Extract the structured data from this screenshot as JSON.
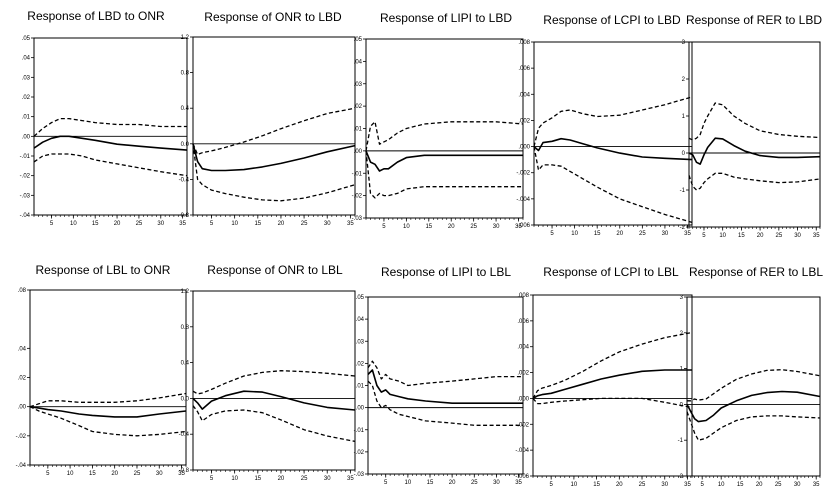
{
  "chart_data": [
    {
      "type": "line",
      "title": "Response of LBD to ONR",
      "ylim": [
        -0.04,
        0.05
      ],
      "y_ticks": [
        ".05",
        ".04",
        ".03",
        ".02",
        ".01",
        ".00",
        "-.01",
        "-.02",
        "-.03",
        "-.04"
      ],
      "x_ticks": [
        "5",
        "10",
        "15",
        "20",
        "25",
        "30",
        "35"
      ],
      "xlim": [
        1,
        36
      ],
      "x": [
        1,
        3,
        5,
        7,
        9,
        12,
        15,
        20,
        25,
        30,
        36
      ],
      "series": [
        {
          "values": [
            -0.006,
            -0.003,
            -0.001,
            0.0,
            0.0,
            -0.001,
            -0.002,
            -0.004,
            -0.005,
            -0.006,
            -0.007
          ],
          "style": "solid"
        },
        {
          "values": [
            0.0,
            0.004,
            0.007,
            0.009,
            0.009,
            0.008,
            0.007,
            0.006,
            0.006,
            0.005,
            0.005
          ],
          "style": "dashed"
        },
        {
          "values": [
            -0.013,
            -0.01,
            -0.009,
            -0.009,
            -0.009,
            -0.01,
            -0.012,
            -0.014,
            -0.016,
            -0.018,
            -0.02
          ],
          "style": "dashed"
        }
      ]
    },
    {
      "type": "line",
      "title": "Response of ONR to LBD",
      "ylim": [
        -0.8,
        1.2
      ],
      "y_ticks": [
        "1.2",
        "0.8",
        "0.4",
        "0.0",
        "-0.4",
        "-0.8"
      ],
      "x_ticks": [
        "5",
        "10",
        "15",
        "20",
        "25",
        "30",
        "35"
      ],
      "xlim": [
        1,
        36
      ],
      "x": [
        1,
        2,
        3,
        5,
        8,
        12,
        16,
        20,
        25,
        30,
        36
      ],
      "series": [
        {
          "values": [
            0.0,
            -0.2,
            -0.28,
            -0.3,
            -0.3,
            -0.29,
            -0.26,
            -0.22,
            -0.16,
            -0.09,
            -0.02
          ],
          "style": "solid"
        },
        {
          "values": [
            0.0,
            -0.12,
            -0.1,
            -0.08,
            -0.04,
            0.02,
            0.09,
            0.17,
            0.26,
            0.34,
            0.4
          ],
          "style": "dashed"
        },
        {
          "values": [
            0.0,
            -0.4,
            -0.46,
            -0.52,
            -0.56,
            -0.6,
            -0.63,
            -0.64,
            -0.61,
            -0.55,
            -0.46
          ],
          "style": "dashed"
        }
      ]
    },
    {
      "type": "line",
      "title": "Response of LIPI to LBD",
      "ylim": [
        -0.03,
        0.05
      ],
      "y_ticks": [
        ".05",
        ".04",
        ".03",
        ".02",
        ".01",
        ".00",
        "-.01",
        "-.02",
        "-.03"
      ],
      "x_ticks": [
        "5",
        "10",
        "15",
        "20",
        "25",
        "30",
        "35"
      ],
      "xlim": [
        1,
        36
      ],
      "x": [
        1,
        2,
        3,
        4,
        5,
        6,
        8,
        10,
        14,
        20,
        25,
        30,
        36
      ],
      "series": [
        {
          "values": [
            0.0,
            -0.005,
            -0.006,
            -0.009,
            -0.008,
            -0.008,
            -0.005,
            -0.003,
            -0.002,
            -0.002,
            -0.002,
            -0.002,
            -0.002
          ],
          "style": "solid"
        },
        {
          "values": [
            0.0,
            0.011,
            0.013,
            0.003,
            0.004,
            0.005,
            0.008,
            0.01,
            0.012,
            0.013,
            0.013,
            0.013,
            0.012
          ],
          "style": "dashed"
        },
        {
          "values": [
            0.0,
            -0.019,
            -0.021,
            -0.019,
            -0.02,
            -0.02,
            -0.019,
            -0.017,
            -0.016,
            -0.016,
            -0.016,
            -0.016,
            -0.016
          ],
          "style": "dashed"
        }
      ]
    },
    {
      "type": "line",
      "title": "Response of LCPI to LBD",
      "ylim": [
        -0.006,
        0.008
      ],
      "y_ticks": [
        ".008",
        ".006",
        ".004",
        ".002",
        ".000",
        "-.002",
        "-.004",
        "-.006"
      ],
      "x_ticks": [
        "5",
        "10",
        "15",
        "20",
        "25",
        "30",
        "35"
      ],
      "xlim": [
        1,
        36
      ],
      "x": [
        1,
        2,
        3,
        5,
        7,
        9,
        12,
        15,
        20,
        25,
        30,
        36
      ],
      "series": [
        {
          "values": [
            0.0,
            -0.0003,
            0.0003,
            0.0004,
            0.0006,
            0.0005,
            0.0002,
            -0.0001,
            -0.0005,
            -0.0008,
            -0.0009,
            -0.001
          ],
          "style": "solid"
        },
        {
          "values": [
            0.0,
            0.0014,
            0.0018,
            0.0022,
            0.0027,
            0.0028,
            0.0025,
            0.0023,
            0.0024,
            0.0028,
            0.0032,
            0.0038
          ],
          "style": "dashed"
        },
        {
          "values": [
            0.0,
            -0.0018,
            -0.0014,
            -0.0014,
            -0.0015,
            -0.0019,
            -0.0025,
            -0.0031,
            -0.004,
            -0.0046,
            -0.0052,
            -0.0058
          ],
          "style": "dashed"
        }
      ]
    },
    {
      "type": "line",
      "title": "Response of RER to LBD",
      "ylim": [
        -2,
        3
      ],
      "y_ticks": [
        "3",
        "2",
        "1",
        "0",
        "-1",
        "-2"
      ],
      "x_ticks": [
        "5",
        "10",
        "15",
        "20",
        "25",
        "30",
        "35"
      ],
      "xlim": [
        1,
        36
      ],
      "x": [
        1,
        2,
        3,
        4,
        5,
        6,
        8,
        10,
        13,
        16,
        20,
        25,
        30,
        36
      ],
      "series": [
        {
          "values": [
            0.0,
            -0.05,
            -0.25,
            -0.3,
            -0.05,
            0.15,
            0.4,
            0.38,
            0.2,
            0.05,
            -0.07,
            -0.12,
            -0.12,
            -0.1
          ],
          "style": "solid"
        },
        {
          "values": [
            0.4,
            0.35,
            0.4,
            0.5,
            0.8,
            1.0,
            1.35,
            1.3,
            1.0,
            0.8,
            0.6,
            0.5,
            0.45,
            0.42
          ],
          "style": "dashed"
        },
        {
          "values": [
            -0.6,
            -0.9,
            -1.0,
            -0.95,
            -0.8,
            -0.7,
            -0.55,
            -0.55,
            -0.65,
            -0.7,
            -0.75,
            -0.8,
            -0.78,
            -0.7
          ],
          "style": "dashed"
        }
      ]
    },
    {
      "type": "line",
      "title": "Response of LBL to ONR",
      "ylim": [
        -0.04,
        0.08
      ],
      "y_ticks": [
        ".08",
        ".04",
        ".02",
        ".00",
        "-.02",
        "-.04"
      ],
      "x_ticks": [
        "5",
        "10",
        "15",
        "20",
        "25",
        "30",
        "35"
      ],
      "xlim": [
        1,
        36
      ],
      "x": [
        1,
        3,
        5,
        8,
        12,
        15,
        20,
        25,
        30,
        36
      ],
      "series": [
        {
          "values": [
            0.0,
            -0.001,
            -0.002,
            -0.003,
            -0.005,
            -0.006,
            -0.007,
            -0.007,
            -0.005,
            -0.003
          ],
          "style": "solid"
        },
        {
          "values": [
            0.0,
            0.002,
            0.004,
            0.004,
            0.003,
            0.003,
            0.003,
            0.004,
            0.006,
            0.009
          ],
          "style": "dashed"
        },
        {
          "values": [
            0.0,
            -0.003,
            -0.005,
            -0.008,
            -0.013,
            -0.017,
            -0.019,
            -0.02,
            -0.019,
            -0.017
          ],
          "style": "dashed"
        }
      ]
    },
    {
      "type": "line",
      "title": "Response of ONR to LBL",
      "ylim": [
        -0.8,
        1.2
      ],
      "y_ticks": [
        "1.2",
        "0.8",
        "0.4",
        "0.0",
        "-0.4",
        "-0.8"
      ],
      "x_ticks": [
        "5",
        "10",
        "15",
        "20",
        "25",
        "30",
        "35"
      ],
      "xlim": [
        1,
        36
      ],
      "x": [
        1,
        2,
        3,
        5,
        8,
        12,
        16,
        20,
        25,
        30,
        36
      ],
      "series": [
        {
          "values": [
            0.0,
            -0.05,
            -0.12,
            -0.03,
            0.03,
            0.08,
            0.07,
            0.02,
            -0.05,
            -0.1,
            -0.13
          ],
          "style": "solid"
        },
        {
          "values": [
            0.08,
            0.05,
            0.06,
            0.1,
            0.17,
            0.25,
            0.29,
            0.31,
            0.3,
            0.28,
            0.25
          ],
          "style": "dashed"
        },
        {
          "values": [
            -0.08,
            -0.15,
            -0.25,
            -0.18,
            -0.14,
            -0.13,
            -0.16,
            -0.24,
            -0.35,
            -0.42,
            -0.48
          ],
          "style": "dashed"
        }
      ]
    },
    {
      "type": "line",
      "title": "Response of LIPI to LBL",
      "ylim": [
        -0.03,
        0.05
      ],
      "y_ticks": [
        ".05",
        ".04",
        ".03",
        ".02",
        ".01",
        ".00",
        "-.01",
        "-.02",
        "-.03"
      ],
      "x_ticks": [
        "5",
        "10",
        "15",
        "20",
        "25",
        "30",
        "35"
      ],
      "xlim": [
        1,
        36
      ],
      "x": [
        1,
        2,
        3,
        4,
        5,
        6,
        8,
        10,
        14,
        20,
        25,
        30,
        36
      ],
      "series": [
        {
          "values": [
            0.015,
            0.017,
            0.01,
            0.007,
            0.008,
            0.006,
            0.005,
            0.004,
            0.003,
            0.002,
            0.002,
            0.002,
            0.002
          ],
          "style": "solid"
        },
        {
          "values": [
            0.018,
            0.021,
            0.018,
            0.013,
            0.015,
            0.013,
            0.012,
            0.01,
            0.011,
            0.012,
            0.013,
            0.014,
            0.014
          ],
          "style": "dashed"
        },
        {
          "values": [
            0.012,
            0.01,
            0.003,
            0.0,
            0.001,
            -0.001,
            -0.003,
            -0.004,
            -0.006,
            -0.007,
            -0.008,
            -0.008,
            -0.008
          ],
          "style": "dashed"
        }
      ]
    },
    {
      "type": "line",
      "title": "Response of LCPI to LBL",
      "ylim": [
        -0.006,
        0.008
      ],
      "y_ticks": [
        ".008",
        ".006",
        ".004",
        ".002",
        ".000",
        "-.002",
        "-.004",
        "-.006"
      ],
      "x_ticks": [
        "5",
        "10",
        "15",
        "20",
        "25",
        "30",
        "35"
      ],
      "xlim": [
        1,
        36
      ],
      "x": [
        1,
        2,
        3,
        5,
        8,
        12,
        16,
        20,
        25,
        30,
        36
      ],
      "series": [
        {
          "values": [
            0.0,
            0.0002,
            0.0003,
            0.0004,
            0.0007,
            0.0011,
            0.0015,
            0.0018,
            0.0021,
            0.0022,
            0.0022
          ],
          "style": "solid"
        },
        {
          "values": [
            0.0,
            0.0006,
            0.0008,
            0.001,
            0.0014,
            0.0021,
            0.0029,
            0.0036,
            0.0042,
            0.0047,
            0.0051
          ],
          "style": "dashed"
        },
        {
          "values": [
            0.0,
            -0.0004,
            -0.0004,
            -0.0003,
            -0.0002,
            -0.0001,
            0.0,
            0.0,
            0.0,
            -0.0003,
            -0.0007
          ],
          "style": "dashed"
        }
      ]
    },
    {
      "type": "line",
      "title": "Response of RER to LBL",
      "ylim": [
        -2,
        3
      ],
      "y_ticks": [
        "3",
        "2",
        "1",
        "0",
        "-1",
        "-2"
      ],
      "x_ticks": [
        "5",
        "10",
        "15",
        "20",
        "25",
        "30",
        "35"
      ],
      "xlim": [
        1,
        36
      ],
      "x": [
        1,
        2,
        3,
        4,
        6,
        8,
        10,
        14,
        18,
        22,
        26,
        30,
        36
      ],
      "series": [
        {
          "values": [
            0.0,
            -0.2,
            -0.4,
            -0.48,
            -0.45,
            -0.3,
            -0.1,
            0.1,
            0.25,
            0.33,
            0.36,
            0.34,
            0.22
          ],
          "style": "solid"
        },
        {
          "values": [
            0.1,
            0.1,
            0.15,
            0.12,
            0.15,
            0.3,
            0.45,
            0.7,
            0.85,
            0.95,
            0.97,
            0.92,
            0.8
          ],
          "style": "dashed"
        },
        {
          "values": [
            -0.2,
            -0.5,
            -0.8,
            -1.0,
            -0.95,
            -0.8,
            -0.65,
            -0.45,
            -0.35,
            -0.32,
            -0.32,
            -0.35,
            -0.38
          ],
          "style": "dashed"
        }
      ]
    }
  ]
}
